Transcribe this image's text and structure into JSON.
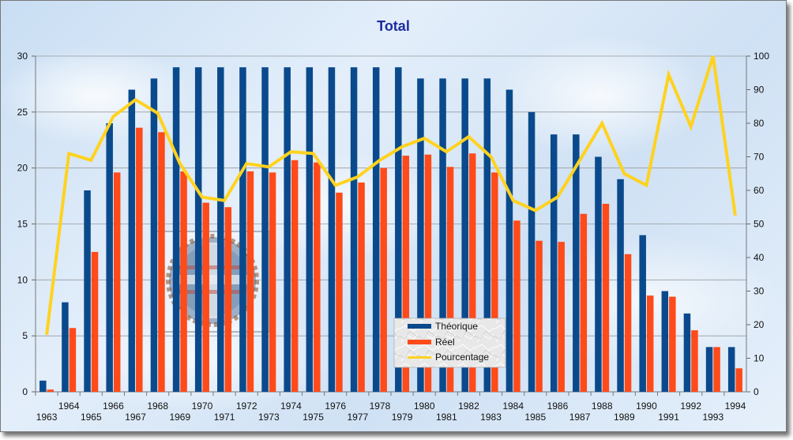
{
  "chart_data": {
    "type": "bar",
    "title": "Total",
    "categories": [
      "1963",
      "1964",
      "1965",
      "1966",
      "1967",
      "1968",
      "1969",
      "1970",
      "1971",
      "1972",
      "1973",
      "1974",
      "1975",
      "1976",
      "1977",
      "1978",
      "1979",
      "1980",
      "1981",
      "1982",
      "1983",
      "1984",
      "1985",
      "1986",
      "1987",
      "1988",
      "1989",
      "1990",
      "1991",
      "1992",
      "1993",
      "1994"
    ],
    "series": [
      {
        "name": "Théorique",
        "type": "bar",
        "axis": "left",
        "color": "#0a4a8c",
        "values": [
          1,
          8,
          18,
          24,
          27,
          28,
          29,
          29,
          29,
          29,
          29,
          29,
          29,
          29,
          29,
          29,
          29,
          28,
          28,
          28,
          28,
          27,
          25,
          23,
          23,
          21,
          19,
          14,
          9,
          7,
          4,
          4
        ]
      },
      {
        "name": "Réel",
        "type": "bar",
        "axis": "left",
        "color": "#ff4a1a",
        "values": [
          0.2,
          5.7,
          12.5,
          19.6,
          23.6,
          23.2,
          19.7,
          16.9,
          16.5,
          19.7,
          19.6,
          20.7,
          20.5,
          17.8,
          18.7,
          20.0,
          21.1,
          21.2,
          20.1,
          21.3,
          19.6,
          15.3,
          13.5,
          13.4,
          15.9,
          16.8,
          12.3,
          8.6,
          8.5,
          5.5,
          4.0,
          2.1
        ]
      },
      {
        "name": "Pourcentage",
        "type": "line",
        "axis": "right",
        "color": "#ffd21f",
        "values": [
          17,
          71,
          69,
          82,
          87,
          83,
          68,
          58,
          57,
          68,
          67,
          71.5,
          71,
          61.5,
          64,
          69,
          73,
          75.5,
          71.5,
          76,
          70,
          57,
          54,
          58,
          69,
          80,
          65,
          61.5,
          94.5,
          79,
          100,
          52.5
        ]
      }
    ],
    "ylim": [
      0,
      30
    ],
    "y_ticks": [
      "0",
      "5",
      "10",
      "15",
      "20",
      "25",
      "30"
    ],
    "y2lim": [
      0,
      100
    ],
    "y2_ticks": [
      "0",
      "10",
      "20",
      "30",
      "40",
      "50",
      "60",
      "70",
      "80",
      "90",
      "100"
    ],
    "grid": true,
    "legend_position": "bottom-center"
  }
}
